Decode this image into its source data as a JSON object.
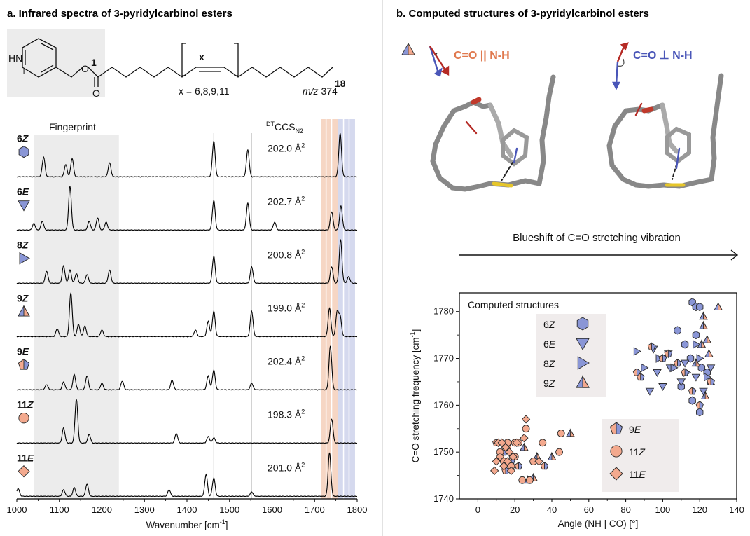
{
  "panel_a": {
    "title": "a. Infrared spectra of 3-pyridylcarbinol esters",
    "structure": {
      "hplus": "HN",
      "plus": "+",
      "ester_o": "O",
      "carbonyl_o": "O",
      "c1": "1",
      "c18": "18",
      "bracket_x": "x",
      "x_values": "x = 6,8,9,11",
      "mz_label": "m/z",
      "mz_value": "374"
    },
    "fingerprint_label": "Fingerprint",
    "ccs_header": "DTCCS",
    "ccs_header_main": "CCS",
    "ccs_header_sup": "DT",
    "ccs_header_sub": "N2"
  },
  "panel_b": {
    "title": "b. Computed structures of 3-pyridylcarbinol esters",
    "left_label": "C=O || N-H",
    "right_label": "C=O ⊥ N-H",
    "arrow_text": "Blueshift of C=O stretching vibration"
  },
  "colors": {
    "blue": "#8a96d6",
    "orange": "#f3a98e",
    "fingerprint_bg": "#ececec",
    "band_orange": "#f6d6c4",
    "band_blue": "#d5d9ee",
    "red_arrow": "#b52a25",
    "blue_arrow": "#4a56b8",
    "orange_text": "#e0794e",
    "blue_text": "#4a56b8"
  },
  "chart_data": [
    {
      "type": "line",
      "title": "",
      "xlabel": "Wavenumber [cm⁻¹]",
      "xlabel_main": "Wavenumber [cm",
      "xlabel_sup": "-1",
      "xlabel_end": "]",
      "xlim": [
        1000,
        1800
      ],
      "xticks": [
        1000,
        1100,
        1200,
        1300,
        1400,
        1500,
        1600,
        1700,
        1800
      ],
      "fingerprint_range": [
        1040,
        1240
      ],
      "band_orange": [
        1715,
        1755
      ],
      "band_blue": [
        1755,
        1795
      ],
      "marker_lines": [
        1463,
        1552
      ],
      "series": [
        {
          "name": "6Z",
          "label_num": "6",
          "label_it": "Z",
          "symbol": "hexagon",
          "ccs": "202.0 Å",
          "ccs_sup": "2",
          "peaks": [
            [
              1063,
              0.45
            ],
            [
              1115,
              0.28
            ],
            [
              1130,
              0.42
            ],
            [
              1218,
              0.32
            ],
            [
              1463,
              0.82
            ],
            [
              1543,
              0.62
            ],
            [
              1760,
              1.0
            ]
          ]
        },
        {
          "name": "6E",
          "label_num": "6",
          "label_it": "E",
          "symbol": "triangle-down",
          "ccs": "202.7 Å",
          "ccs_sup": "2",
          "peaks": [
            [
              1040,
              0.15
            ],
            [
              1060,
              0.2
            ],
            [
              1125,
              1.0
            ],
            [
              1170,
              0.2
            ],
            [
              1190,
              0.28
            ],
            [
              1210,
              0.18
            ],
            [
              1463,
              0.68
            ],
            [
              1543,
              0.62
            ],
            [
              1606,
              0.18
            ],
            [
              1740,
              0.42
            ],
            [
              1762,
              0.55
            ]
          ]
        },
        {
          "name": "8Z",
          "label_num": "8",
          "label_it": "Z",
          "symbol": "triangle-right",
          "ccs": "200.8 Å",
          "ccs_sup": "2",
          "peaks": [
            [
              1070,
              0.28
            ],
            [
              1110,
              0.4
            ],
            [
              1125,
              0.3
            ],
            [
              1140,
              0.22
            ],
            [
              1165,
              0.2
            ],
            [
              1218,
              0.3
            ],
            [
              1463,
              0.62
            ],
            [
              1552,
              0.38
            ],
            [
              1740,
              0.38
            ],
            [
              1761,
              1.0
            ],
            [
              1780,
              0.15
            ]
          ]
        },
        {
          "name": "9Z",
          "label_num": "9",
          "label_it": "Z",
          "symbol": "triangle-split",
          "ccs": "199.0 Å",
          "ccs_sup": "2",
          "peaks": [
            [
              1095,
              0.18
            ],
            [
              1127,
              1.0
            ],
            [
              1145,
              0.28
            ],
            [
              1160,
              0.24
            ],
            [
              1200,
              0.15
            ],
            [
              1420,
              0.15
            ],
            [
              1450,
              0.35
            ],
            [
              1463,
              0.58
            ],
            [
              1552,
              0.58
            ],
            [
              1735,
              0.65
            ],
            [
              1753,
              0.55
            ],
            [
              1760,
              0.45
            ]
          ]
        },
        {
          "name": "9E",
          "label_num": "9",
          "label_it": "E",
          "symbol": "pentagon-split",
          "ccs": "202.4 Å",
          "ccs_sup": "2",
          "peaks": [
            [
              1070,
              0.12
            ],
            [
              1110,
              0.18
            ],
            [
              1135,
              0.35
            ],
            [
              1165,
              0.32
            ],
            [
              1200,
              0.15
            ],
            [
              1248,
              0.2
            ],
            [
              1365,
              0.22
            ],
            [
              1450,
              0.32
            ],
            [
              1463,
              0.45
            ],
            [
              1552,
              0.15
            ],
            [
              1737,
              1.0
            ]
          ]
        },
        {
          "name": "11Z",
          "label_num": "11",
          "label_it": "Z",
          "symbol": "circle",
          "ccs": "198.3 Å",
          "ccs_sup": "2",
          "peaks": [
            [
              1110,
              0.35
            ],
            [
              1140,
              1.0
            ],
            [
              1170,
              0.2
            ],
            [
              1375,
              0.22
            ],
            [
              1450,
              0.15
            ],
            [
              1463,
              0.12
            ],
            [
              1740,
              0.55
            ]
          ]
        },
        {
          "name": "11E",
          "label_num": "11",
          "label_it": "E",
          "symbol": "diamond",
          "ccs": "201.0 Å",
          "ccs_sup": "2",
          "peaks": [
            [
              1003,
              0.18
            ],
            [
              1110,
              0.15
            ],
            [
              1135,
              0.2
            ],
            [
              1165,
              0.28
            ],
            [
              1358,
              0.15
            ],
            [
              1445,
              0.5
            ],
            [
              1463,
              0.42
            ],
            [
              1552,
              0.1
            ],
            [
              1735,
              1.0
            ]
          ]
        }
      ]
    },
    {
      "type": "scatter",
      "title": "",
      "inset_label": "Computed structures",
      "xlabel": "Angle (NH | CO) [°]",
      "ylabel": "C=O stretching frequency [cm⁻¹]",
      "ylabel_main": "C=O stretching frequency [cm",
      "ylabel_sup": "-1",
      "ylabel_end": "]",
      "xlim": [
        -10,
        140
      ],
      "ylim": [
        1740,
        1784
      ],
      "xticks": [
        0,
        20,
        40,
        60,
        80,
        100,
        120,
        140
      ],
      "yticks": [
        1740,
        1750,
        1760,
        1770,
        1780
      ],
      "legend_left": [
        {
          "num": "6",
          "it": "Z",
          "symbol": "hexagon"
        },
        {
          "num": "6",
          "it": "E",
          "symbol": "triangle-down"
        },
        {
          "num": "8",
          "it": "Z",
          "symbol": "triangle-right"
        },
        {
          "num": "9",
          "it": "Z",
          "symbol": "triangle-split"
        }
      ],
      "legend_right": [
        {
          "num": "9",
          "it": "E",
          "symbol": "pentagon-split"
        },
        {
          "num": "11",
          "it": "Z",
          "symbol": "circle"
        },
        {
          "num": "11",
          "it": "E",
          "symbol": "diamond"
        }
      ],
      "series": [
        {
          "name": "6Z",
          "symbol": "hexagon",
          "color": "blue",
          "points": [
            [
              116,
              1782
            ],
            [
              118,
              1781
            ],
            [
              120,
              1781
            ],
            [
              108,
              1776
            ],
            [
              118,
              1775
            ],
            [
              112,
              1773
            ],
            [
              115,
              1770
            ],
            [
              121,
              1768
            ],
            [
              124,
              1767
            ],
            [
              110,
              1764
            ],
            [
              116,
              1761
            ],
            [
              120,
              1758.5
            ]
          ]
        },
        {
          "name": "6E",
          "symbol": "triangle-down",
          "color": "blue",
          "points": [
            [
              95,
              1772
            ],
            [
              103,
              1771
            ],
            [
              112,
              1769
            ],
            [
              97,
              1767
            ],
            [
              104,
              1768
            ],
            [
              118,
              1766
            ],
            [
              110,
              1765
            ],
            [
              122,
              1763
            ],
            [
              100,
              1764
            ],
            [
              126,
              1768
            ],
            [
              93,
              1763
            ]
          ]
        },
        {
          "name": "8Z",
          "symbol": "triangle-right",
          "color": "blue",
          "points": [
            [
              86,
              1771.5
            ],
            [
              98,
              1770
            ],
            [
              106,
              1768
            ],
            [
              113,
              1767
            ],
            [
              118,
              1773
            ],
            [
              90,
              1768
            ],
            [
              120,
              1770
            ],
            [
              124,
              1766
            ]
          ]
        },
        {
          "name": "9Z",
          "symbol": "triangle-split",
          "color": "blue",
          "points": [
            [
              130,
              1781
            ],
            [
              122,
              1777
            ],
            [
              124,
              1774
            ],
            [
              121,
              1773
            ],
            [
              125,
              1771
            ],
            [
              118,
              1769
            ],
            [
              126,
              1765
            ],
            [
              123,
              1762
            ],
            [
              122,
              1779
            ]
          ]
        },
        {
          "name": "9E",
          "symbol": "pentagon-split",
          "color": "blue",
          "points": [
            [
              86,
              1767
            ],
            [
              94,
              1772.5
            ],
            [
              100,
              1770
            ],
            [
              103,
              1771
            ],
            [
              108,
              1769
            ],
            [
              112,
              1767
            ],
            [
              116,
              1763
            ],
            [
              120,
              1760
            ],
            [
              126,
              1765
            ],
            [
              88,
              1766
            ]
          ]
        },
        {
          "name": "9Z-orange",
          "symbol": "triangle-split",
          "color": "orange",
          "points": [
            [
              25,
              1751
            ],
            [
              32,
              1749
            ],
            [
              50,
              1754
            ],
            [
              40,
              1749
            ],
            [
              27,
              1744
            ],
            [
              30,
              1744.5
            ]
          ]
        },
        {
          "name": "9E-orange",
          "symbol": "pentagon-split",
          "color": "orange",
          "points": [
            [
              10,
              1752
            ],
            [
              14,
              1750
            ],
            [
              18,
              1748
            ],
            [
              22,
              1747
            ],
            [
              15,
              1746
            ],
            [
              36,
              1747
            ]
          ]
        },
        {
          "name": "11Z",
          "symbol": "circle",
          "color": "orange",
          "points": [
            [
              26,
              1755
            ],
            [
              45,
              1754
            ],
            [
              35,
              1752
            ],
            [
              22,
              1752
            ],
            [
              44,
              1750
            ],
            [
              30,
              1748
            ],
            [
              16,
              1751
            ],
            [
              20,
              1749
            ],
            [
              12,
              1750
            ],
            [
              24,
              1744
            ],
            [
              28,
              1744
            ],
            [
              18,
              1747
            ],
            [
              14,
              1748
            ],
            [
              16,
              1752
            ],
            [
              20,
              1752
            ]
          ]
        },
        {
          "name": "11E",
          "symbol": "diamond",
          "color": "orange",
          "points": [
            [
              26,
              1757
            ],
            [
              11,
              1752
            ],
            [
              13,
              1752
            ],
            [
              15,
              1751
            ],
            [
              17,
              1750
            ],
            [
              19,
              1749
            ],
            [
              21,
              1752
            ],
            [
              12,
              1749
            ],
            [
              14,
              1747
            ],
            [
              16,
              1748
            ],
            [
              18,
              1746
            ],
            [
              10,
              1748
            ],
            [
              25,
              1753
            ],
            [
              33,
              1748
            ],
            [
              9,
              1746
            ]
          ]
        }
      ]
    }
  ]
}
